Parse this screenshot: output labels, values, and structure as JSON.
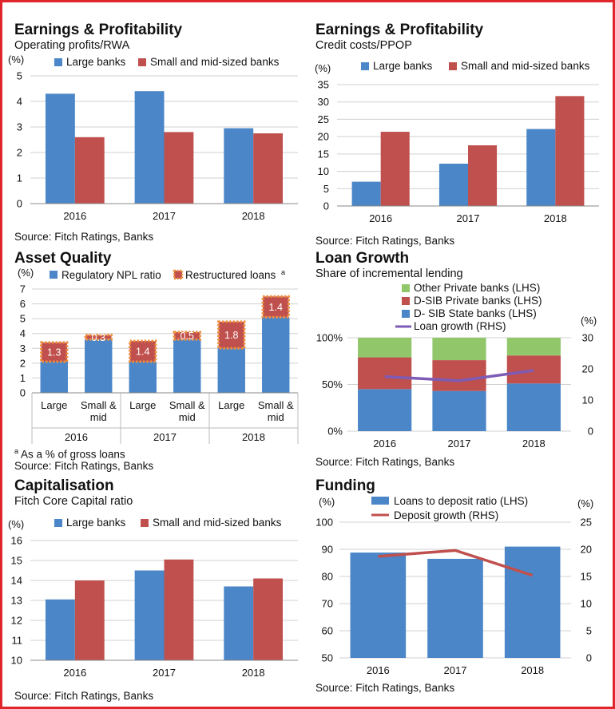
{
  "colors": {
    "blue": "#4a86c8",
    "red": "#c0504d",
    "green": "#92c66b",
    "purple": "#7e5bb5",
    "orange": "#f0913e",
    "grid": "#d0d0d0",
    "frame": "#e0262a"
  },
  "panels": [
    {
      "title": "Earnings & Profitability",
      "subtitle": "Operating profits/RWA",
      "source": "Source: Fitch Ratings, Banks"
    },
    {
      "title": "Earnings & Profitability",
      "subtitle": "Credit costs/PPOP",
      "source": "Source: Fitch Ratings, Banks"
    },
    {
      "title": "Asset Quality",
      "subtitle": "",
      "source": "Source: Fitch Ratings, Banks",
      "footnote": "a As a % of gross loans"
    },
    {
      "title": "Loan Growth",
      "subtitle": "Share of incremental lending",
      "source": "Source: Fitch Ratings, Banks"
    },
    {
      "title": "Capitalisation",
      "subtitle": "Fitch Core Capital ratio",
      "source": "Source: Fitch Ratings, Banks"
    },
    {
      "title": "Funding",
      "subtitle": "",
      "source": "Source: Fitch Ratings, Banks"
    }
  ],
  "chart_data": [
    {
      "type": "bar",
      "title": "Operating profits/RWA",
      "ylabel": "(%)",
      "categories": [
        "2016",
        "2017",
        "2018"
      ],
      "series": [
        {
          "name": "Large banks",
          "values": [
            4.3,
            4.4,
            2.95
          ]
        },
        {
          "name": "Small and mid-sized banks",
          "values": [
            2.6,
            2.8,
            2.75
          ]
        }
      ],
      "ylim": [
        0,
        5
      ],
      "yticks": [
        "0",
        "1",
        "2",
        "3",
        "4",
        "5"
      ],
      "grid": true,
      "legend": "top"
    },
    {
      "type": "bar",
      "title": "Credit costs/PPOP",
      "ylabel": "(%)",
      "categories": [
        "2016",
        "2017",
        "2018"
      ],
      "series": [
        {
          "name": "Large banks",
          "values": [
            7,
            12.2,
            22.2
          ]
        },
        {
          "name": "Small and mid-sized banks",
          "values": [
            21.4,
            17.5,
            31.7
          ]
        }
      ],
      "ylim": [
        0,
        35
      ],
      "yticks": [
        "0",
        "5",
        "10",
        "15",
        "20",
        "25",
        "30",
        "35"
      ],
      "grid": true,
      "legend": "top"
    },
    {
      "type": "bar",
      "title": "Asset Quality",
      "ylabel": "(%)",
      "stacked": true,
      "groups": [
        "2016",
        "2017",
        "2018"
      ],
      "categories": [
        "Large",
        "Small & mid",
        "Large",
        "Small & mid",
        "Large",
        "Small & mid"
      ],
      "series": [
        {
          "name": "Regulatory NPL ratio",
          "values": [
            2.1,
            3.6,
            2.1,
            3.6,
            3.0,
            5.1
          ]
        },
        {
          "name": "Restructured loans",
          "name_suffix": "a",
          "values": [
            1.3,
            0.3,
            1.4,
            0.5,
            1.8,
            1.4
          ]
        }
      ],
      "data_labels": [
        "1.3",
        "0.3",
        "1.4",
        "0.5",
        "1.8",
        "1.4"
      ],
      "ylim": [
        0,
        7
      ],
      "yticks": [
        "0",
        "1",
        "2",
        "3",
        "4",
        "5",
        "6",
        "7"
      ],
      "grid": true,
      "legend": "top"
    },
    {
      "type": "bar",
      "title": "Share of incremental lending",
      "stacked": true,
      "categories": [
        "2016",
        "2017",
        "2018"
      ],
      "series": [
        {
          "name": "D- SIB State banks (LHS)",
          "values": [
            45,
            43,
            51
          ]
        },
        {
          "name": "D-SIB Private banks (LHS)",
          "values": [
            34,
            33,
            30
          ]
        },
        {
          "name": "Other Private banks (LHS)",
          "values": [
            21,
            24,
            19
          ]
        },
        {
          "name": "Loan growth (RHS)",
          "type": "line",
          "axis": "right",
          "values": [
            17.5,
            16.2,
            19.5
          ]
        }
      ],
      "legend_order": [
        "Other Private banks (LHS)",
        "D-SIB Private banks (LHS)",
        "D- SIB State banks (LHS)",
        "Loan growth (RHS)"
      ],
      "ylim": [
        0,
        100
      ],
      "yticks": [
        "0%",
        "50%",
        "100%"
      ],
      "y2label": "(%)",
      "y2lim": [
        0,
        30
      ],
      "y2ticks": [
        "0",
        "10",
        "20",
        "30"
      ],
      "grid": true,
      "legend": "top"
    },
    {
      "type": "bar",
      "title": "Fitch Core Capital ratio",
      "ylabel": "(%)",
      "categories": [
        "2016",
        "2017",
        "2018"
      ],
      "series": [
        {
          "name": "Large banks",
          "values": [
            13.05,
            14.5,
            13.7
          ]
        },
        {
          "name": "Small and mid-sized banks",
          "values": [
            14.0,
            15.05,
            14.1
          ]
        }
      ],
      "ylim": [
        10,
        16
      ],
      "yticks": [
        "10",
        "11",
        "12",
        "13",
        "14",
        "15",
        "16"
      ],
      "grid": true,
      "legend": "top"
    },
    {
      "type": "bar",
      "title": "Funding",
      "ylabel": "(%)",
      "categories": [
        "2016",
        "2017",
        "2018"
      ],
      "series": [
        {
          "name": "Loans to deposit ratio (LHS)",
          "values": [
            88.8,
            86.5,
            91.0
          ]
        },
        {
          "name": "Deposit growth (RHS)",
          "type": "line",
          "axis": "right",
          "values": [
            18.7,
            19.8,
            15.2
          ]
        }
      ],
      "ylim": [
        50,
        100
      ],
      "yticks": [
        "50",
        "60",
        "70",
        "80",
        "90",
        "100"
      ],
      "y2label": "(%)",
      "y2lim": [
        0,
        25
      ],
      "y2ticks": [
        "0",
        "5",
        "10",
        "15",
        "20",
        "25"
      ],
      "grid": true,
      "legend": "top"
    }
  ]
}
